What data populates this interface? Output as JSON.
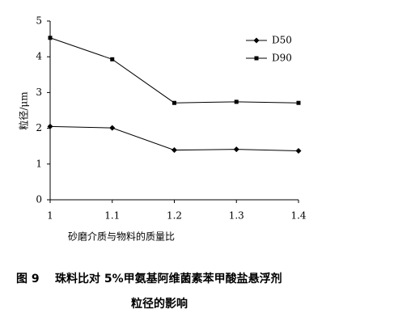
{
  "chart_data": {
    "type": "line",
    "x_label": "砂磨介质与物料的质量比",
    "y_label": "粒径/μm",
    "x": [
      1,
      1.1,
      1.2,
      1.3,
      1.4
    ],
    "xlim": [
      1,
      1.4
    ],
    "xticks": [
      1,
      1.1,
      1.2,
      1.3,
      1.4
    ],
    "ylim": [
      0,
      5
    ],
    "yticks": [
      0,
      1,
      2,
      3,
      4,
      5
    ],
    "grid": false,
    "legend": "top-right",
    "series": [
      {
        "name": "D50",
        "color": "#000000",
        "marker": "diamond",
        "values": [
          2.05,
          2.01,
          1.39,
          1.41,
          1.37
        ]
      },
      {
        "name": "D90",
        "color": "#000000",
        "marker": "square",
        "values": [
          4.53,
          3.93,
          2.71,
          2.74,
          2.71
        ]
      }
    ]
  },
  "caption": {
    "label": "图 9",
    "lines": [
      "珠料比对 5%甲氨基阿维菌素苯甲酸盐悬浮剂",
      "粒径的影响"
    ]
  }
}
